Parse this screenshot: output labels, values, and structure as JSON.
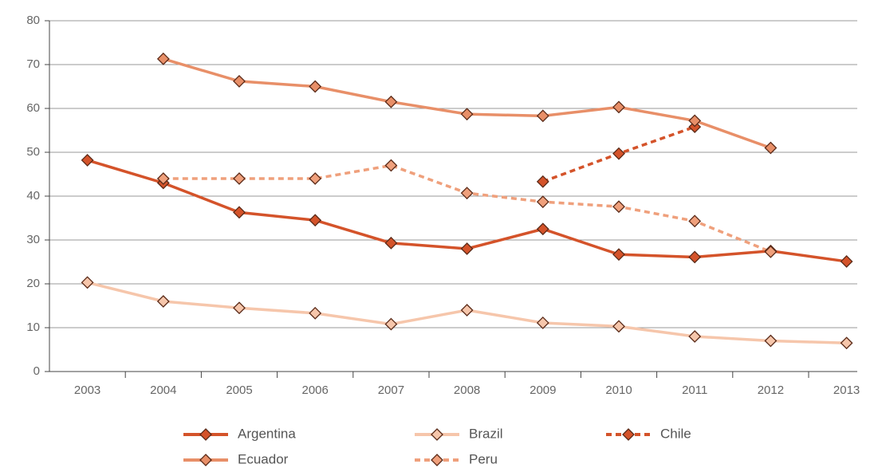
{
  "chart_data": {
    "type": "line",
    "categories": [
      "2003",
      "2004",
      "2005",
      "2006",
      "2007",
      "2008",
      "2009",
      "2010",
      "2011",
      "2012",
      "2013"
    ],
    "series": [
      {
        "name": "Argentina",
        "color": "#d4532a",
        "dash": "solid",
        "values": [
          48.2,
          43,
          36.3,
          34.5,
          29.3,
          28,
          32.5,
          26.7,
          26.1,
          27.5,
          25.1
        ]
      },
      {
        "name": "Brazil",
        "color": "#f6c6ab",
        "dash": "solid",
        "values": [
          20.3,
          16,
          14.5,
          13.3,
          10.8,
          14,
          11.1,
          10.3,
          8,
          7,
          6.5
        ]
      },
      {
        "name": "Chile",
        "color": "#d4532a",
        "dash": "dashed",
        "values": [
          null,
          null,
          null,
          null,
          null,
          null,
          43.3,
          49.7,
          55.8,
          null,
          null
        ]
      },
      {
        "name": "Ecuador",
        "color": "#e88f68",
        "dash": "solid",
        "values": [
          null,
          71.3,
          66.2,
          65,
          61.5,
          58.7,
          58.3,
          60.3,
          57.2,
          51,
          null
        ]
      },
      {
        "name": "Peru",
        "color": "#efa07c",
        "dash": "dashed",
        "values": [
          null,
          44,
          44,
          44,
          47,
          40.7,
          38.7,
          37.6,
          34.3,
          27.3,
          null
        ]
      }
    ],
    "ylim": [
      0,
      80
    ],
    "yticks": [
      0,
      10,
      20,
      30,
      40,
      50,
      60,
      70,
      80
    ],
    "grid": true,
    "legend": "bottom"
  }
}
